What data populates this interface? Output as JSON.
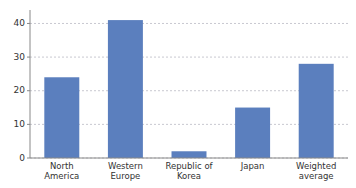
{
  "chart_data": {
    "type": "bar",
    "categories": [
      "North\nAmerica",
      "Western\nEurope",
      "Republic of\nKorea",
      "Japan",
      "Weighted\naverage"
    ],
    "values": [
      24,
      41,
      2,
      15,
      28
    ],
    "color": "#5b7fbe",
    "ylim": [
      0,
      44
    ],
    "yticks": [
      0,
      10,
      20,
      30,
      40
    ],
    "grid": true
  }
}
